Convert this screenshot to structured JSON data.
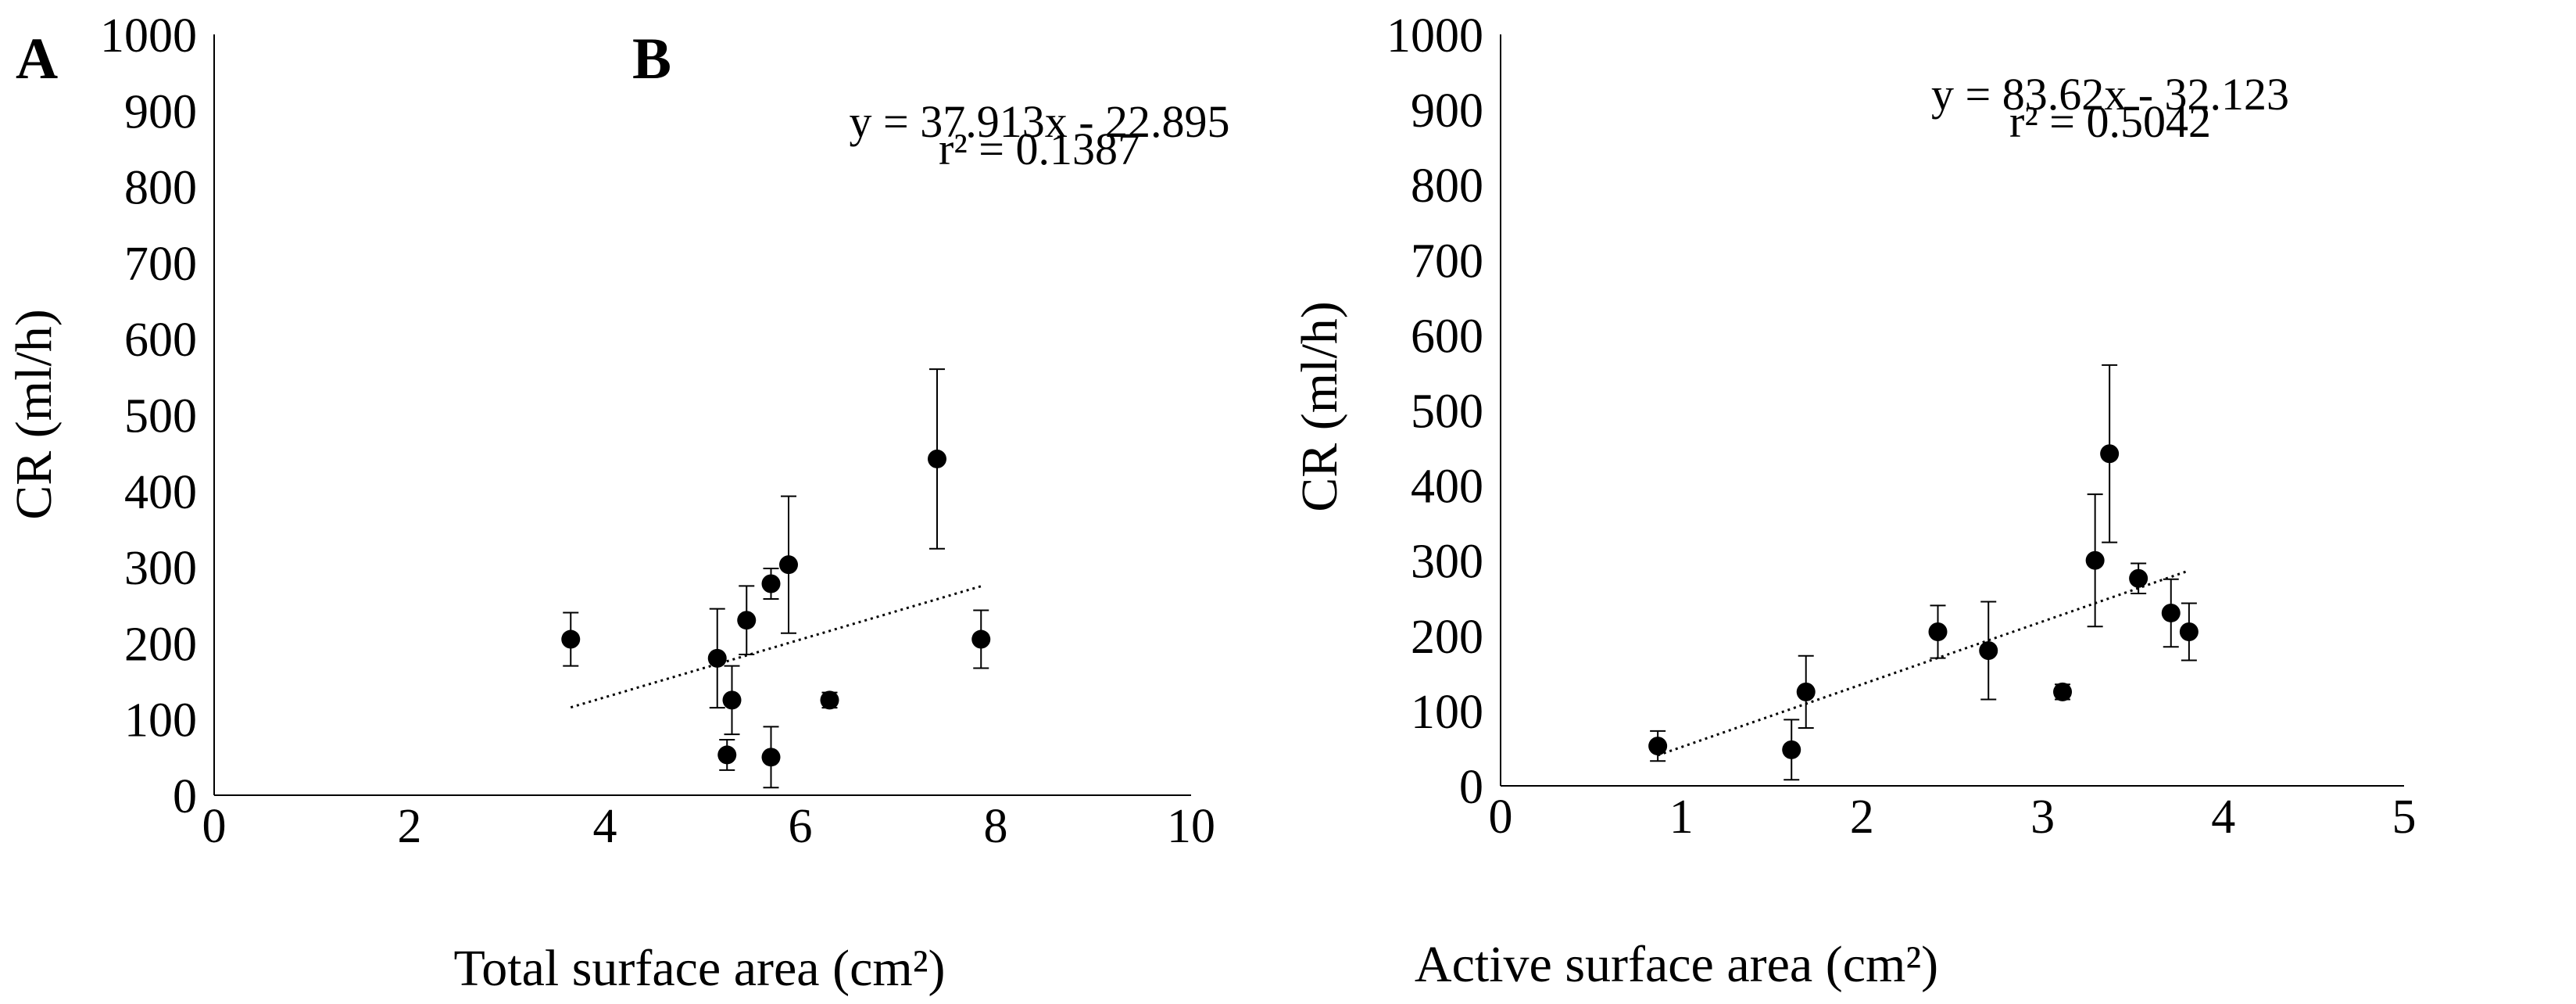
{
  "chart_data": [
    {
      "type": "scatter",
      "panel_label": "A",
      "xlabel": "Total surface area (cm²)",
      "ylabel": "CR (ml/h)",
      "xlim": [
        0,
        10
      ],
      "ylim": [
        0,
        1000
      ],
      "x_ticks": [
        0,
        2,
        4,
        6,
        8,
        10
      ],
      "y_ticks": [
        0,
        100,
        200,
        300,
        400,
        500,
        600,
        700,
        800,
        900,
        1000
      ],
      "grid": false,
      "series": [
        {
          "name": "CR",
          "points": [
            {
              "x": 3.65,
              "y": 205,
              "err": 35
            },
            {
              "x": 5.15,
              "y": 180,
              "err": 65
            },
            {
              "x": 5.25,
              "y": 53,
              "err": 20
            },
            {
              "x": 5.3,
              "y": 125,
              "err": 45
            },
            {
              "x": 5.45,
              "y": 230,
              "err": 45
            },
            {
              "x": 5.7,
              "y": 278,
              "err": 20
            },
            {
              "x": 5.7,
              "y": 50,
              "err": 40
            },
            {
              "x": 5.88,
              "y": 303,
              "err": 90
            },
            {
              "x": 6.3,
              "y": 125,
              "err": 10
            },
            {
              "x": 7.4,
              "y": 442,
              "err": 118
            },
            {
              "x": 7.85,
              "y": 205,
              "err": 38
            }
          ]
        }
      ],
      "trendline": {
        "slope": 37.913,
        "intercept": -22.895,
        "x_start": 3.65,
        "x_end": 7.85,
        "style": "dotted"
      },
      "annotations": [
        "y = 37.913x - 22.895",
        "r² = 0.1387"
      ]
    },
    {
      "type": "scatter",
      "panel_label": "B",
      "xlabel": "Active surface area (cm²)",
      "ylabel": "CR (ml/h)",
      "xlim": [
        0,
        5
      ],
      "ylim": [
        0,
        1000
      ],
      "x_ticks": [
        0,
        1,
        2,
        3,
        4,
        5
      ],
      "y_ticks": [
        0,
        100,
        200,
        300,
        400,
        500,
        600,
        700,
        800,
        900,
        1000
      ],
      "grid": false,
      "series": [
        {
          "name": "CR",
          "points": [
            {
              "x": 0.87,
              "y": 53,
              "err": 20
            },
            {
              "x": 1.61,
              "y": 48,
              "err": 40
            },
            {
              "x": 1.69,
              "y": 125,
              "err": 48
            },
            {
              "x": 2.42,
              "y": 205,
              "err": 35
            },
            {
              "x": 2.7,
              "y": 180,
              "err": 65
            },
            {
              "x": 3.11,
              "y": 125,
              "err": 10
            },
            {
              "x": 3.29,
              "y": 300,
              "err": 88
            },
            {
              "x": 3.37,
              "y": 442,
              "err": 118
            },
            {
              "x": 3.53,
              "y": 276,
              "err": 20
            },
            {
              "x": 3.71,
              "y": 230,
              "err": 45
            },
            {
              "x": 3.81,
              "y": 205,
              "err": 38
            }
          ]
        }
      ],
      "trendline": {
        "slope": 83.62,
        "intercept": -32.123,
        "x_start": 0.87,
        "x_end": 3.81,
        "style": "dotted"
      },
      "annotations": [
        "y = 83.62x - 32.123",
        "r² = 0.5042"
      ]
    }
  ]
}
